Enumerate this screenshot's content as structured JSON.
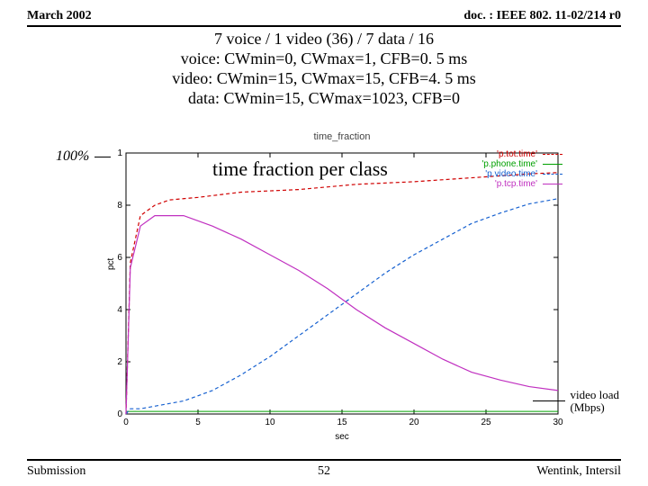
{
  "header": {
    "left": "March 2002",
    "right": "doc. : IEEE 802. 11-02/214 r0"
  },
  "title": {
    "l1": "7 voice / 1 video (36) / 7 data / 16",
    "l2": "voice: CWmin=0, CWmax=1, CFB=0. 5 ms",
    "l3": "video: CWmin=15, CWmax=15, CFB=4. 5 ms",
    "l4": "data: CWmin=15, CWmax=1023, CFB=0"
  },
  "hundred": "100%",
  "overlay": "time fraction per class",
  "chart": {
    "type": "line",
    "chart_title": "time_fraction",
    "xlabel": "sec",
    "ylabel": "pct",
    "xlim": [
      0,
      30
    ],
    "ylim": [
      0,
      1
    ],
    "xticks": [
      0,
      5,
      10,
      15,
      20,
      25,
      30
    ],
    "yticks": [
      0,
      0.2,
      0.4,
      0.6,
      0.8,
      1
    ],
    "background": "#ffffff",
    "axis_color": "#000000",
    "series": [
      {
        "name": "p.tot.time",
        "color": "#d00000",
        "dash": "4 3",
        "width": 1.2,
        "x": [
          0,
          0.3,
          1,
          2,
          3,
          5,
          8,
          12,
          16,
          20,
          24,
          28,
          30
        ],
        "y": [
          0,
          0.58,
          0.76,
          0.8,
          0.82,
          0.83,
          0.85,
          0.86,
          0.88,
          0.89,
          0.905,
          0.92,
          0.925
        ]
      },
      {
        "name": "p.phone.time",
        "color": "#00a000",
        "dash": "",
        "width": 1,
        "x": [
          0,
          30
        ],
        "y": [
          0.01,
          0.01
        ]
      },
      {
        "name": "p.video.time",
        "color": "#1560d0",
        "dash": "4 3",
        "width": 1.2,
        "x": [
          0,
          0.3,
          1,
          2,
          4,
          6,
          8,
          10,
          12,
          14,
          16,
          18,
          20,
          22,
          24,
          26,
          28,
          30
        ],
        "y": [
          0,
          0.02,
          0.02,
          0.03,
          0.05,
          0.09,
          0.15,
          0.22,
          0.3,
          0.38,
          0.46,
          0.54,
          0.61,
          0.67,
          0.73,
          0.77,
          0.805,
          0.825
        ]
      },
      {
        "name": "p.tcp.time",
        "color": "#c030c0",
        "dash": "",
        "width": 1.2,
        "x": [
          0,
          0.3,
          1,
          2,
          4,
          6,
          8,
          10,
          12,
          14,
          16,
          18,
          20,
          22,
          24,
          26,
          28,
          30
        ],
        "y": [
          0,
          0.56,
          0.72,
          0.76,
          0.76,
          0.72,
          0.67,
          0.61,
          0.55,
          0.48,
          0.4,
          0.33,
          0.27,
          0.21,
          0.16,
          0.13,
          0.105,
          0.09
        ]
      }
    ],
    "legend": {
      "items": [
        "'p.tot.time'",
        "'p.phone.time'",
        "'p.video.time'",
        "'p.tcp.time'"
      ],
      "colors": [
        "#d00000",
        "#00a000",
        "#1560d0",
        "#c030c0"
      ],
      "dash": [
        "4 3",
        "",
        "4 3",
        ""
      ]
    }
  },
  "vload": {
    "l1": "video load",
    "l2": "(Mbps)"
  },
  "footer": {
    "left": "Submission",
    "mid": "52",
    "right": "Wentink, Intersil"
  }
}
